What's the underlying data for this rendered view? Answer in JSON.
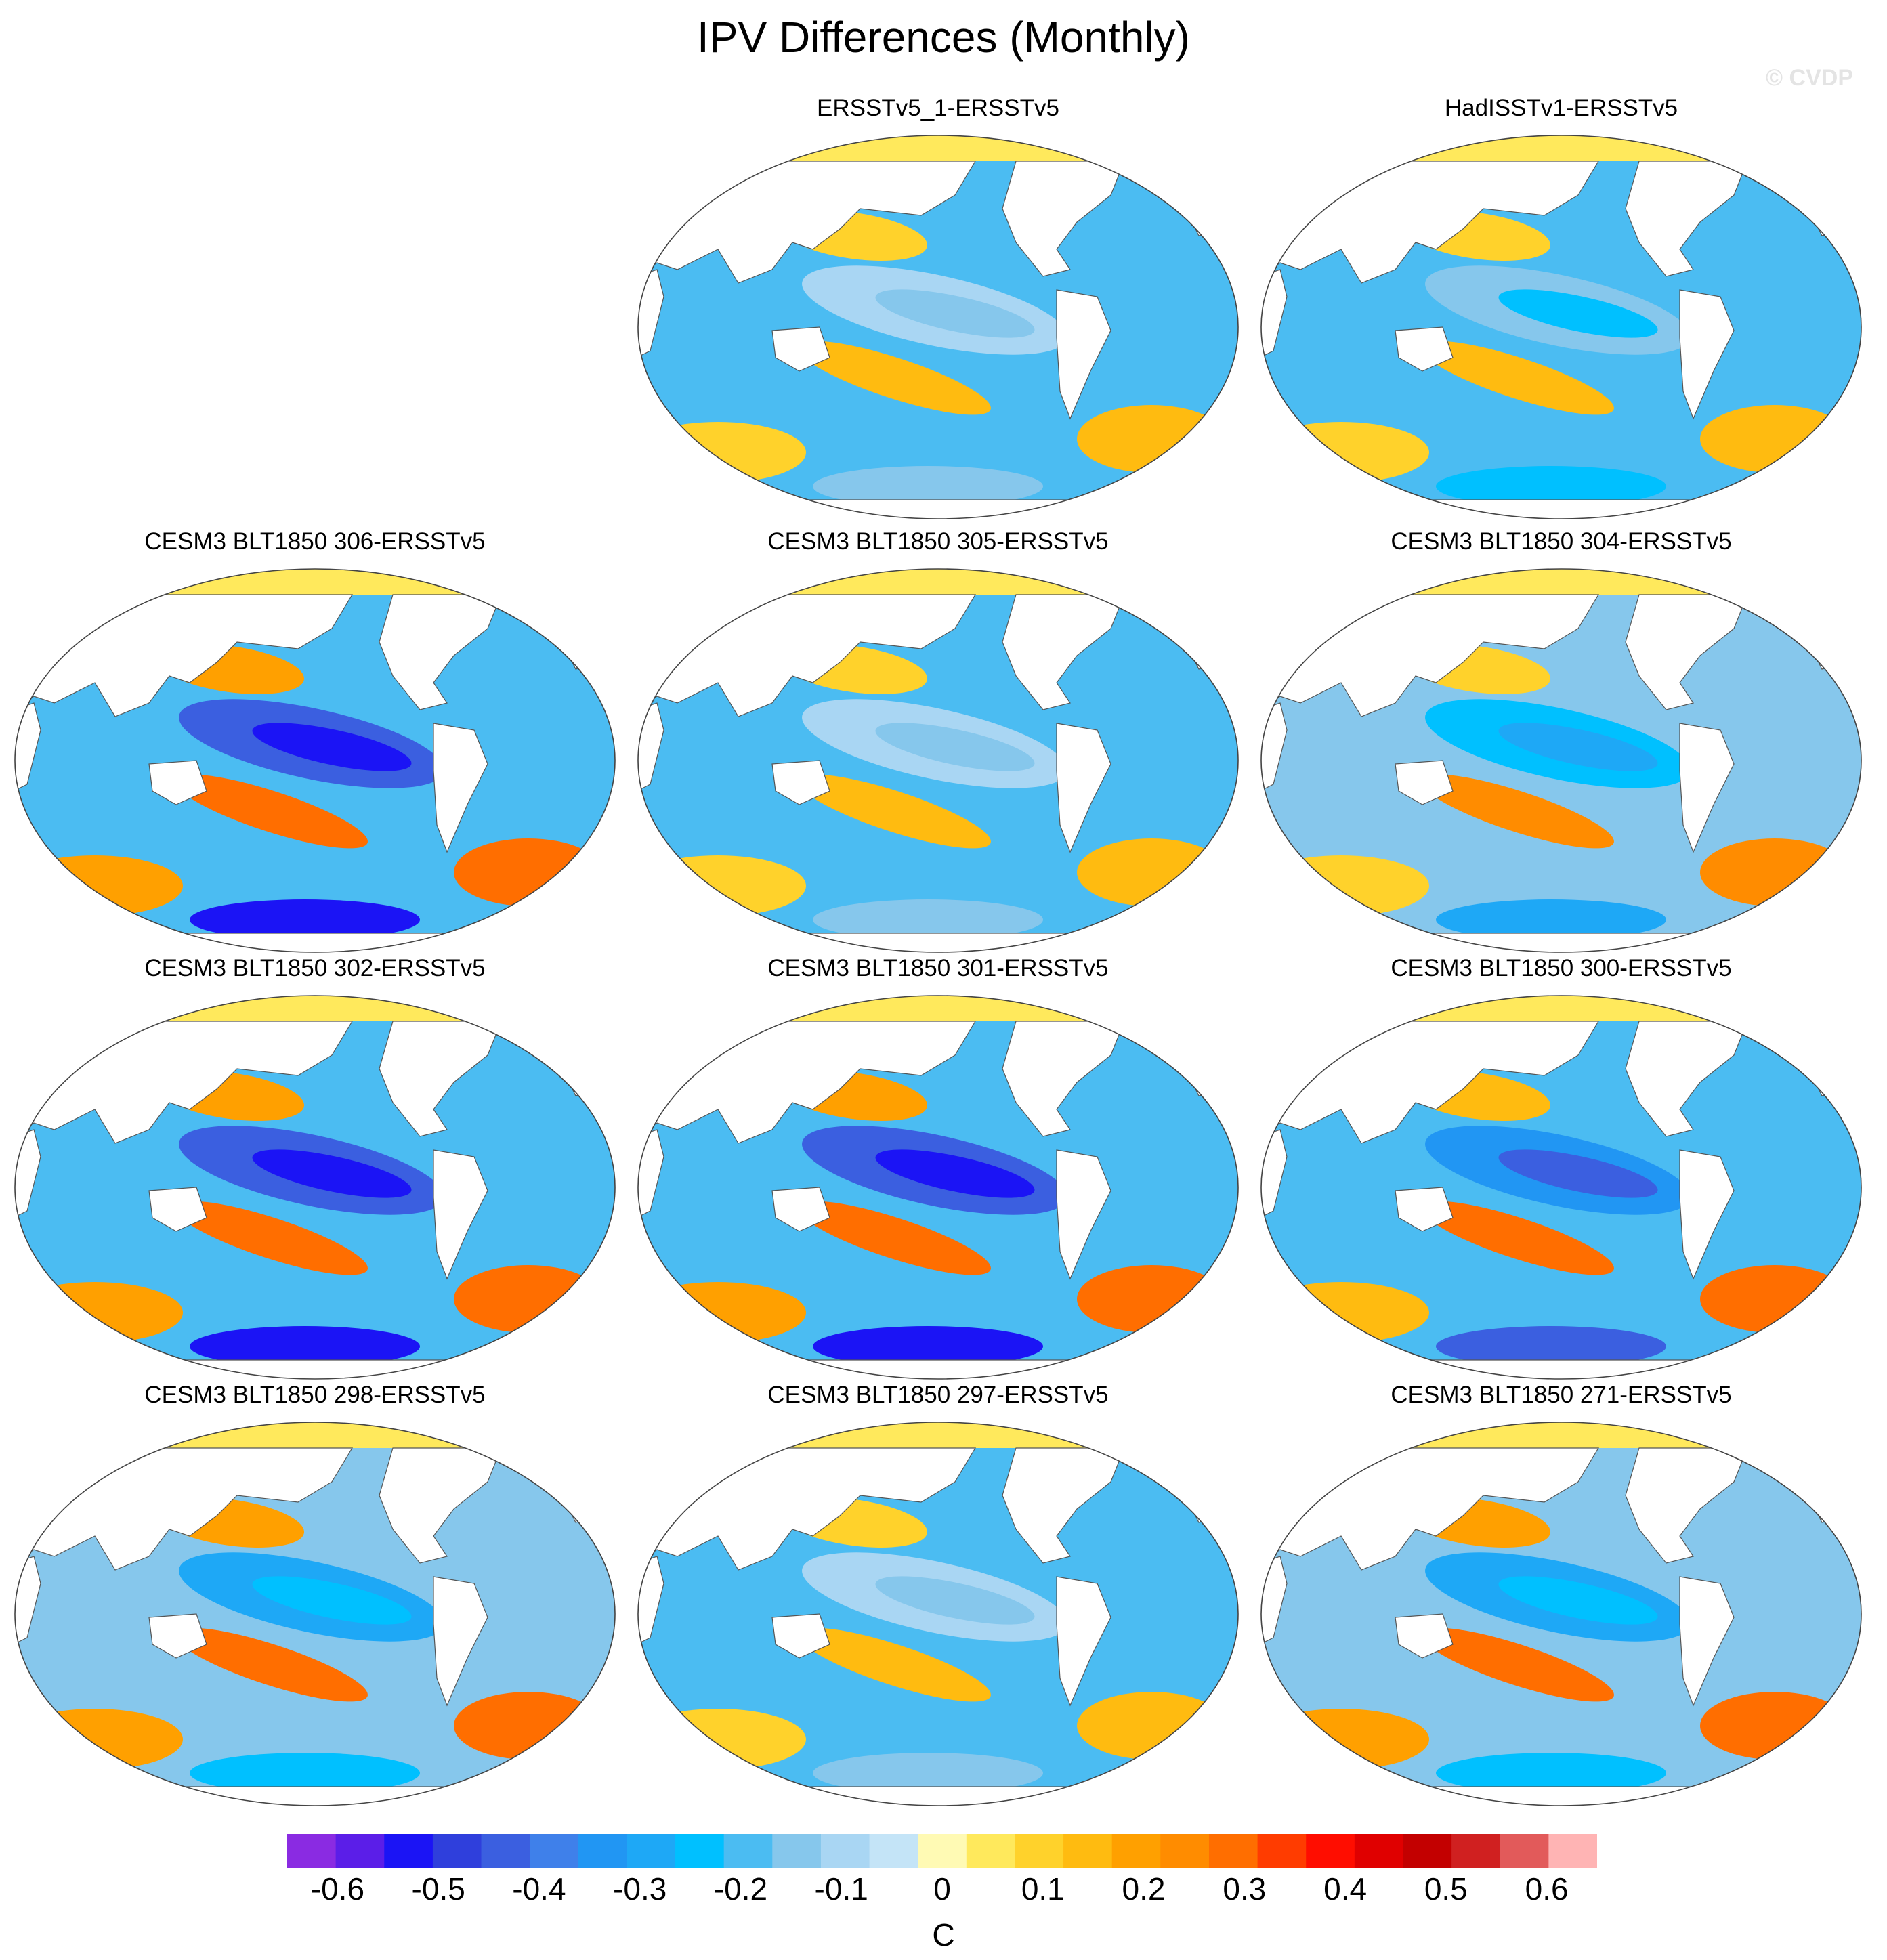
{
  "title": "IPV Differences (Monthly)",
  "watermark": "© CVDP",
  "panels": [
    {
      "label": "ERSSTv5_1-ERSSTv5",
      "pattern": "weak-mixed"
    },
    {
      "label": "HadISSTv1-ERSSTv5",
      "pattern": "weak-negative"
    },
    {
      "label": "CESM3 BLT1850 306-ERSSTv5",
      "pattern": "strong-negative-pacific"
    },
    {
      "label": "CESM3 BLT1850 305-ERSSTv5",
      "pattern": "weak-mixed"
    },
    {
      "label": "CESM3 BLT1850 304-ERSSTv5",
      "pattern": "weak-positive-pacific"
    },
    {
      "label": "CESM3 BLT1850 302-ERSSTv5",
      "pattern": "strong-negative-pacific"
    },
    {
      "label": "CESM3 BLT1850 301-ERSSTv5",
      "pattern": "strong-negative-pacific"
    },
    {
      "label": "CESM3 BLT1850 300-ERSSTv5",
      "pattern": "moderate-negative-pacific"
    },
    {
      "label": "CESM3 BLT1850 298-ERSSTv5",
      "pattern": "positive-pacific"
    },
    {
      "label": "CESM3 BLT1850 297-ERSSTv5",
      "pattern": "weak-mixed"
    },
    {
      "label": "CESM3 BLT1850 271-ERSSTv5",
      "pattern": "positive-pacific"
    }
  ],
  "colorbar": {
    "unit": "C",
    "levels": [
      -0.65,
      -0.6,
      -0.55,
      -0.5,
      -0.45,
      -0.4,
      -0.35,
      -0.3,
      -0.25,
      -0.2,
      -0.15,
      -0.1,
      -0.05,
      0,
      0.05,
      0.1,
      0.15,
      0.2,
      0.25,
      0.3,
      0.35,
      0.4,
      0.45,
      0.5,
      0.55,
      0.6,
      0.65
    ],
    "tick_labels": [
      "-0.6",
      "-0.5",
      "-0.4",
      "-0.3",
      "-0.2",
      "-0.1",
      "0",
      "0.1",
      "0.2",
      "0.3",
      "0.4",
      "0.5",
      "0.6"
    ],
    "colors": [
      "#8a2be2",
      "#5b1ee8",
      "#1b14f5",
      "#2f3fdc",
      "#3b5fe0",
      "#3f80ea",
      "#2196f3",
      "#1ea8f6",
      "#00c0ff",
      "#4bbcf2",
      "#86c7ec",
      "#a9d6f3",
      "#c4e4f7",
      "#fffab4",
      "#ffe95c",
      "#ffd22b",
      "#ffbb10",
      "#ffa000",
      "#ff8c00",
      "#ff6e00",
      "#ff3c00",
      "#ff0d00",
      "#e00000",
      "#c30000",
      "#d02020",
      "#e25a5a",
      "#ffb4b4"
    ]
  },
  "chart_data": {
    "type": "heatmap",
    "title": "IPV Differences (Monthly)",
    "variable": "IPV SST difference",
    "unit": "C",
    "range": [
      -0.65,
      0.65
    ],
    "panels": [
      "ERSSTv5_1-ERSSTv5",
      "HadISSTv1-ERSSTv5",
      "CESM3 BLT1850 306-ERSSTv5",
      "CESM3 BLT1850 305-ERSSTv5",
      "CESM3 BLT1850 304-ERSSTv5",
      "CESM3 BLT1850 302-ERSSTv5",
      "CESM3 BLT1850 301-ERSSTv5",
      "CESM3 BLT1850 300-ERSSTv5",
      "CESM3 BLT1850 298-ERSSTv5",
      "CESM3 BLT1850 297-ERSSTv5",
      "CESM3 BLT1850 271-ERSSTv5"
    ]
  }
}
